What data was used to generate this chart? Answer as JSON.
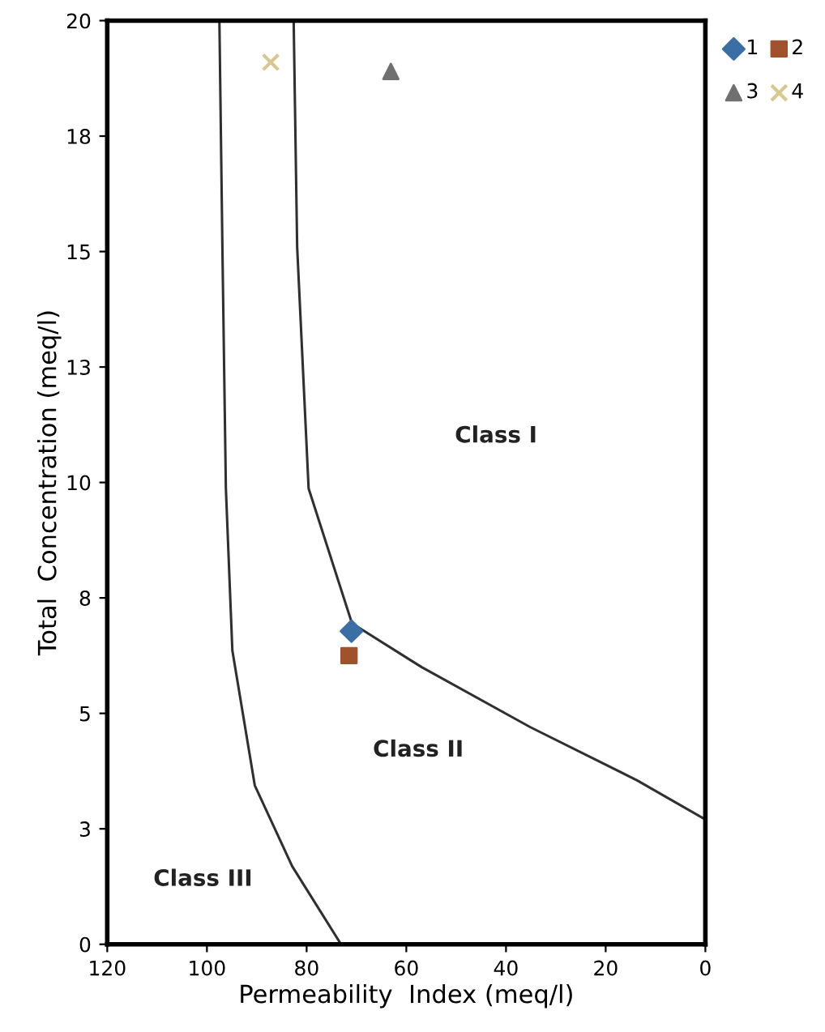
{
  "chart_data": {
    "type": "scatter",
    "xlabel": "Permeability  Index (meq/l)",
    "ylabel": "Total  Concentration (meq/l)",
    "xlim": [
      120,
      0
    ],
    "xticks": [
      120,
      100,
      80,
      60,
      40,
      20,
      0
    ],
    "ylim": [
      0,
      20
    ],
    "yticks": [
      0,
      {
        "value": 2.5,
        "label": "3"
      },
      5,
      {
        "value": 7.5,
        "label": "8"
      },
      10,
      {
        "value": 12.5,
        "label": "13"
      },
      15,
      {
        "value": 17.5,
        "label": "18"
      },
      20
    ],
    "grid": false,
    "legend": "top right",
    "series": [
      {
        "type": "line",
        "color": "#303030",
        "x": [
          97.5,
          96.9,
          96.2,
          94.9,
          90.4,
          82.9,
          73.1
        ],
        "values": [
          20,
          15.1,
          9.87,
          6.36,
          3.44,
          1.69,
          0
        ]
      },
      {
        "type": "line",
        "color": "#303030",
        "x": [
          82.6,
          81.9,
          79.6,
          70.9,
          56.9,
          35.1,
          13.7,
          0
        ],
        "values": [
          20,
          15.1,
          9.87,
          6.95,
          6.0,
          4.7,
          3.55,
          2.7
        ]
      },
      {
        "name": "1",
        "marker": "diamond",
        "color": "#3a6ea5",
        "x": [
          71.0
        ],
        "values": [
          6.78
        ]
      },
      {
        "name": "2",
        "marker": "square",
        "color": "#a0522d",
        "x": [
          71.5
        ],
        "values": [
          6.25
        ]
      },
      {
        "name": "3",
        "marker": "triangle",
        "color": "#707070",
        "x": [
          63.1
        ],
        "values": [
          18.9
        ]
      },
      {
        "name": "4",
        "marker": "cross",
        "color": "#d8c890",
        "x": [
          87.2
        ],
        "values": [
          19.1
        ]
      }
    ],
    "annotations": [
      "Class I",
      "Class II",
      "Class III"
    ]
  }
}
